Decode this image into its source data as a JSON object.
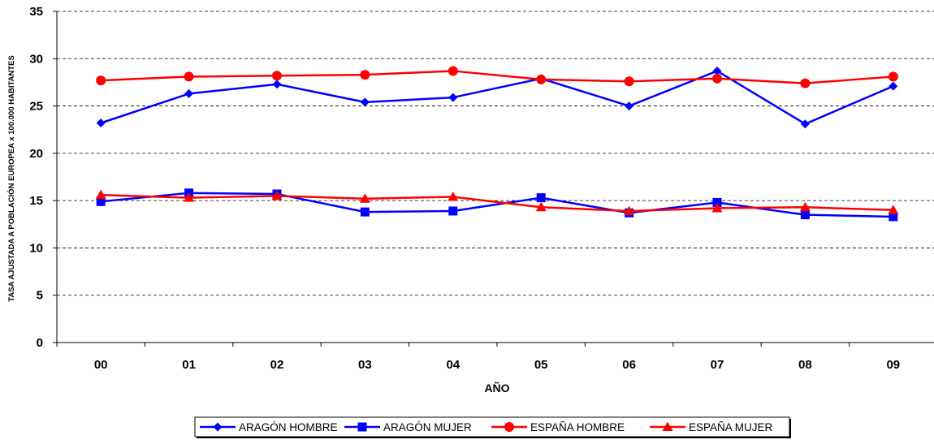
{
  "chart_data": {
    "type": "line",
    "title": "",
    "xlabel": "AÑO",
    "ylabel": "TASA AJUSTADA A POBLACIÓN EUROPEA x 100.000 HABITANTES",
    "categories": [
      "00",
      "01",
      "02",
      "03",
      "04",
      "05",
      "06",
      "07",
      "08",
      "09"
    ],
    "ylim": [
      0,
      35
    ],
    "yticks": [
      0,
      5,
      10,
      15,
      20,
      25,
      30,
      35
    ],
    "grid": "horizontal dashed",
    "legend_position": "bottom",
    "series": [
      {
        "name": "ARAGÓN HOMBRE",
        "color": "#0000ff",
        "marker": "diamond",
        "values": [
          23.2,
          26.3,
          27.3,
          25.4,
          25.9,
          27.9,
          25.0,
          28.7,
          23.1,
          27.1
        ]
      },
      {
        "name": "ARAGÓN MUJER",
        "color": "#0000ff",
        "marker": "square",
        "values": [
          14.9,
          15.8,
          15.7,
          13.8,
          13.9,
          15.3,
          13.7,
          14.8,
          13.5,
          13.3
        ]
      },
      {
        "name": "ESPAÑA HOMBRE",
        "color": "#ff0000",
        "marker": "circle",
        "values": [
          27.7,
          28.1,
          28.2,
          28.3,
          28.7,
          27.8,
          27.6,
          27.9,
          27.4,
          28.1
        ]
      },
      {
        "name": "ESPAÑA MUJER",
        "color": "#ff0000",
        "marker": "triangle",
        "values": [
          15.6,
          15.3,
          15.5,
          15.2,
          15.4,
          14.3,
          13.9,
          14.2,
          14.3,
          14.0
        ]
      }
    ]
  }
}
